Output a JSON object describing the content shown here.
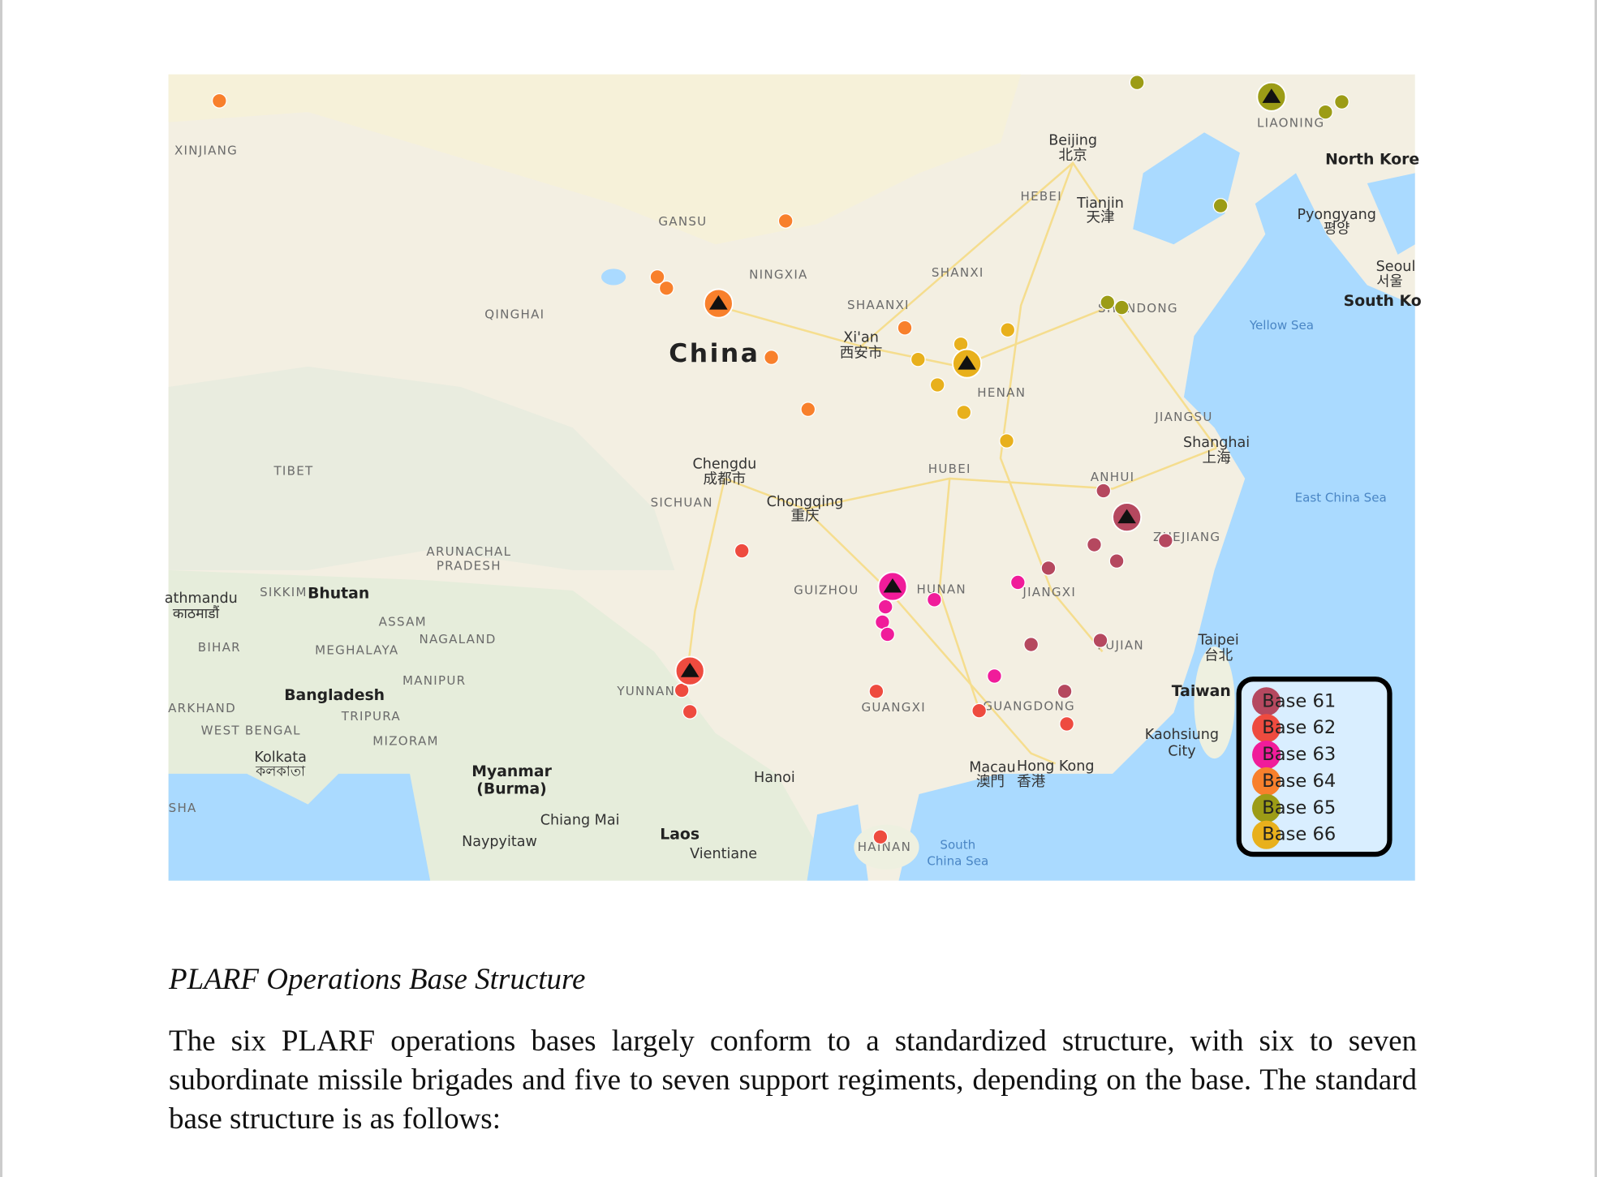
{
  "map": {
    "labels": [
      "XINJIANG",
      "GANSU",
      "NINGXIA",
      "QINGHAI",
      "China",
      "SHAANXI",
      "Xi'an",
      "西安市",
      "SHANXI",
      "Beijing",
      "北京",
      "HEBEI",
      "Tianjin",
      "天津",
      "LIAONING",
      "North Kore",
      "Pyongyang",
      "평양",
      "Seoul",
      "서울",
      "South Ko",
      "SHANDONG",
      "Yellow Sea",
      "HENAN",
      "JIANGSU",
      "Shanghai",
      "上海",
      "TIBET",
      "HUBEI",
      "Chengdu",
      "成都市",
      "SICHUAN",
      "Chongqing",
      "重庆",
      "ANHUI",
      "East China Sea",
      "ZHEJIANG",
      "ARUNACHAL",
      "PRADESH",
      "athmandu",
      "काठमाडौं",
      "SIKKIM",
      "Bhutan",
      "GUIZHOU",
      "HUNAN",
      "JIANGXI",
      "ASSAM",
      "BIHAR",
      "MEGHALAYA",
      "NAGALAND",
      "FUJIAN",
      "Taipei",
      "台北",
      "MANIPUR",
      "Bangladesh",
      "YUNNAN",
      "Taiwan",
      "ARKHAND",
      "GUANGXI",
      "GUANGDONG",
      "TRIPURA",
      "WEST BENGAL",
      "MIZORAM",
      "Kaohsiung",
      "City",
      "Kolkata",
      "কলকাতা",
      "Myanmar",
      "(Burma)",
      "Macau",
      "澳門",
      "Hong Kong",
      "香港",
      "Hanoi",
      "SHA",
      "Chiang Mai",
      "Laos",
      "Naypyitaw",
      "Vientiane",
      "HAINAN",
      "South",
      "China Sea"
    ],
    "legend": [
      {
        "label": "Base 61",
        "color": "#b5485f"
      },
      {
        "label": "Base 62",
        "color": "#ee4b3f"
      },
      {
        "label": "Base 63",
        "color": "#f01c9a"
      },
      {
        "label": "Base 64",
        "color": "#f8802c"
      },
      {
        "label": "Base 65",
        "color": "#9c9c16"
      },
      {
        "label": "Base 66",
        "color": "#e8b01c"
      }
    ]
  },
  "caption": "PLARF Operations Base Structure",
  "paragraph": "The six PLARF operations bases largely conform to a standardized structure, with six to seven subordinate missile brigades and five to seven support regiments, depending on the base. The standard base structure is as follows:"
}
